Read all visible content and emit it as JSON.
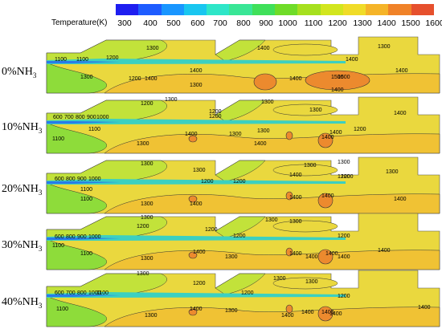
{
  "legend": {
    "title": "Temperature(K)",
    "ticks": [
      "300",
      "400",
      "500",
      "600",
      "700",
      "800",
      "900",
      "1000",
      "1100",
      "1200",
      "1300",
      "1400",
      "1500",
      "1600"
    ],
    "colors": [
      "#1e1ef0",
      "#1e5cff",
      "#1996ff",
      "#19c6f0",
      "#2ee6c8",
      "#39e696",
      "#3fe05a",
      "#6fdc28",
      "#a6e01e",
      "#d2e61e",
      "#f0dc28",
      "#f5b428",
      "#f08228",
      "#e6502d"
    ]
  },
  "palette": {
    "zone_1100": "#8edc3a",
    "zone_1200": "#c2e23a",
    "zone_1300": "#ead83e",
    "zone_1400": "#f0c234",
    "zone_1500": "#ec8a2e",
    "jet_core": "#2a7ae8",
    "jet_edge": "#3cd0c0"
  },
  "rows": [
    {
      "label": "0%NH",
      "sub": "3",
      "isotherms": [
        "1100",
        "1100",
        "1200",
        "1300",
        "1200",
        "1300",
        "1300",
        "1400",
        "1400",
        "1400",
        "1300",
        "1400",
        "1500",
        "1400",
        "1500",
        "1400",
        "1400"
      ]
    },
    {
      "label": "10%NH",
      "sub": "3",
      "isotherms": [
        "600",
        "700",
        "800",
        "900",
        "1000",
        "1100",
        "1200",
        "1300",
        "1100",
        "1200",
        "1300",
        "1300",
        "1200",
        "1300",
        "1400",
        "1400",
        "1300",
        "1400",
        "1300",
        "1400",
        "1400",
        "1200"
      ]
    },
    {
      "label": "20%NH",
      "sub": "3",
      "isotherms": [
        "600",
        "800",
        "900",
        "1000",
        "1100",
        "1200",
        "1300",
        "1100",
        "1300",
        "1200",
        "1400",
        "1300",
        "1300",
        "1200",
        "1400",
        "1300",
        "1400",
        "1300",
        "1400",
        "1400",
        "1200"
      ]
    },
    {
      "label": "30%NH",
      "sub": "3",
      "isotherms": [
        "600",
        "800",
        "900",
        "1000",
        "1100",
        "1300",
        "1200",
        "1200",
        "1400",
        "1100",
        "1300",
        "1200",
        "1400",
        "1300",
        "1400",
        "1300",
        "1200",
        "1400",
        "1400",
        "1300",
        "1400"
      ]
    },
    {
      "label": "40%NH",
      "sub": "3",
      "isotherms": [
        "600",
        "700",
        "800",
        "1000",
        "1100",
        "1300",
        "1200",
        "1200",
        "1400",
        "1100",
        "1300",
        "1300",
        "1200",
        "1400",
        "1300",
        "1400",
        "1400",
        "1400",
        "1300",
        "1400"
      ]
    }
  ]
}
